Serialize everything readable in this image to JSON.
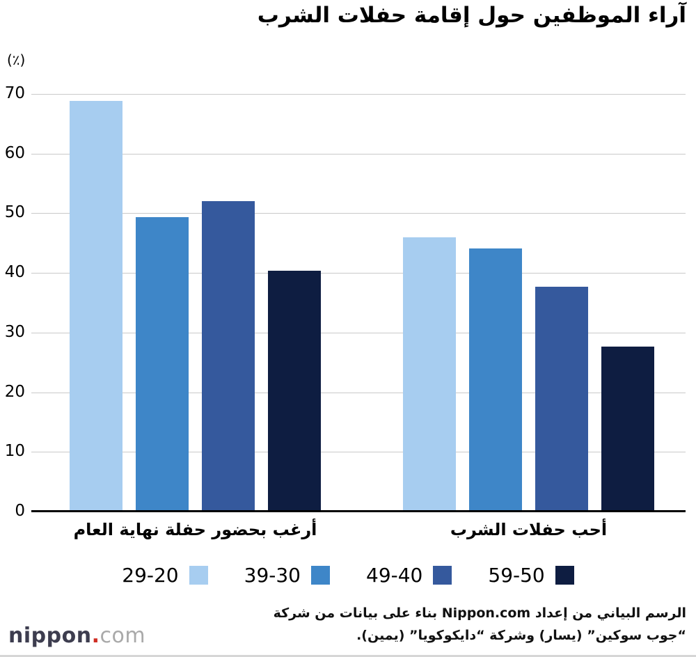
{
  "chart_data": {
    "type": "bar",
    "title": "آراء الموظفين حول إقامة حفلات الشرب",
    "ylabel": "(٪)",
    "ylim": [
      0,
      70
    ],
    "yticks": [
      0,
      10,
      20,
      30,
      40,
      50,
      60,
      70
    ],
    "grid": true,
    "legend_position": "bottom",
    "categories": [
      "أرغب بحضور حفلة نهاية العام",
      "أحب حفلات الشرب"
    ],
    "series": [
      {
        "name": "29-20",
        "color": "#a7cdf0",
        "values": [
          68.8,
          46.0
        ]
      },
      {
        "name": "39-30",
        "color": "#3e86c8",
        "values": [
          49.3,
          44.1
        ]
      },
      {
        "name": "49-40",
        "color": "#35599d",
        "values": [
          52.0,
          37.7
        ]
      },
      {
        "name": "59-50",
        "color": "#0e1d41",
        "values": [
          40.4,
          27.7
        ]
      }
    ]
  },
  "footer": {
    "line1": "الرسم البياني من إعداد Nippon.com بناء على بيانات من شركة",
    "line2": "“جوب سوكين” (يسار) وشركة “دايكوكويا” (يمين)."
  },
  "logo": {
    "name": "nippon",
    "dot": ".",
    "tld": "com"
  }
}
